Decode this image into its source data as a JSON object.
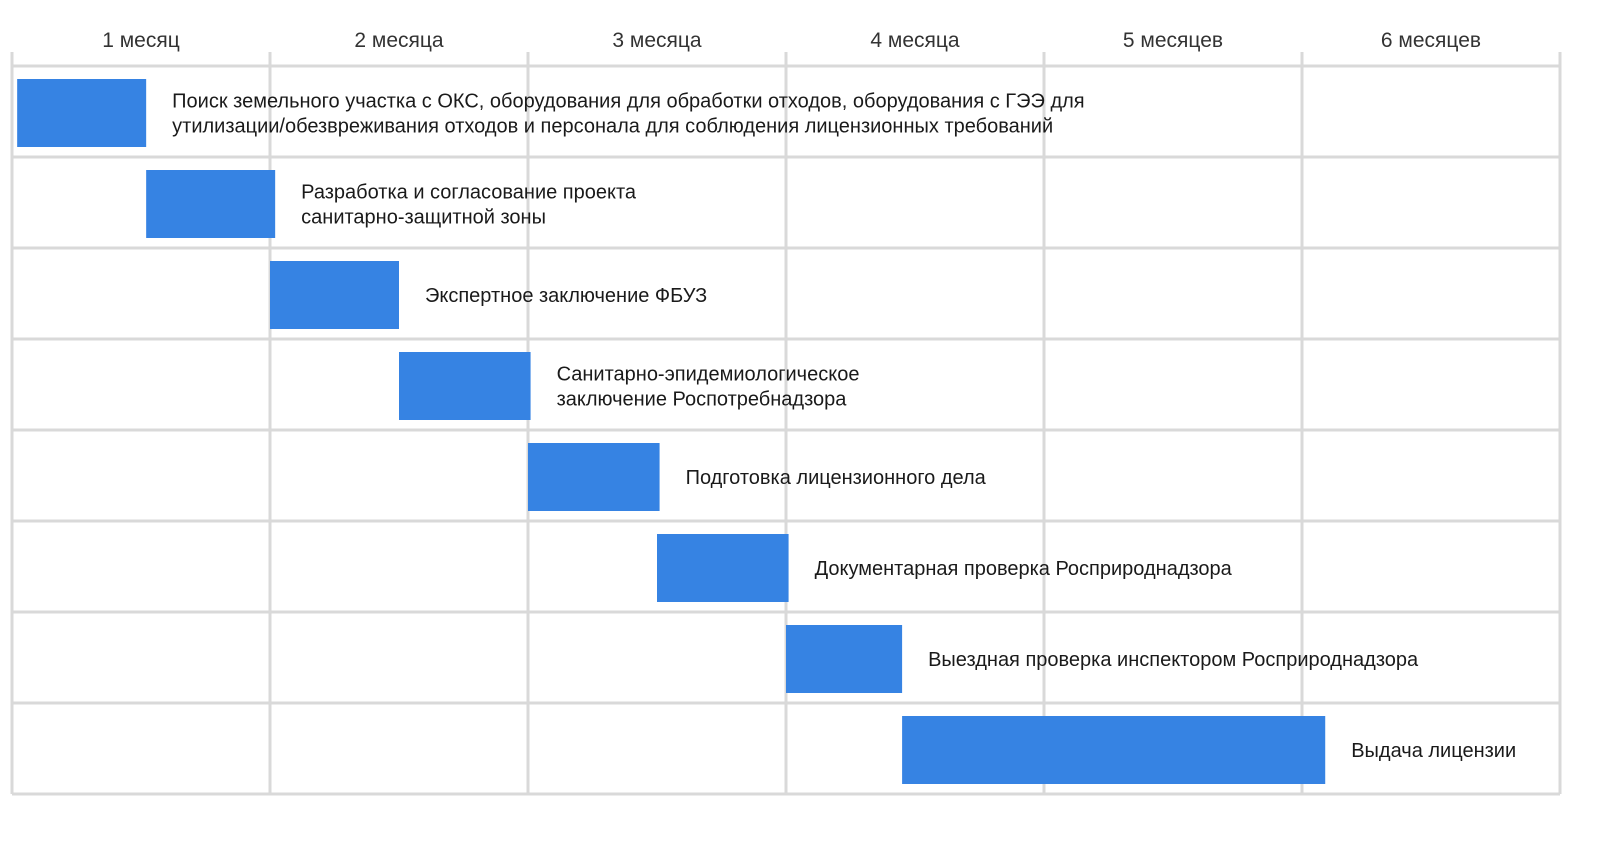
{
  "chart_data": {
    "type": "gantt",
    "x_unit": "month",
    "months": [
      "1 месяц",
      "2 месяца",
      "3 месяца",
      "4 месяца",
      "5 месяцев",
      "6 месяцев"
    ],
    "xlim": [
      0,
      6
    ],
    "grid": true,
    "tasks": [
      {
        "label": [
          "Поиск земельного участка с ОКС, оборудования для обработки отходов, оборудования с ГЭЭ для",
          "утилизации/обезвреживания отходов и персонала для соблюдения лицензионных требований"
        ],
        "start": 0.02,
        "end": 0.52
      },
      {
        "label": [
          "Разработка и согласование проекта",
          "санитарно-защитной зоны"
        ],
        "start": 0.52,
        "end": 1.02
      },
      {
        "label": [
          "Экспертное заключение ФБУЗ"
        ],
        "start": 1.0,
        "end": 1.5
      },
      {
        "label": [
          "Санитарно-эпидемиологическое",
          "заключение Роспотребнадзора"
        ],
        "start": 1.5,
        "end": 2.01
      },
      {
        "label": [
          "Подготовка лицензионного дела"
        ],
        "start": 2.0,
        "end": 2.51
      },
      {
        "label": [
          "Документарная проверка Росприроднадзора"
        ],
        "start": 2.5,
        "end": 3.01
      },
      {
        "label": [
          "Выездная проверка инспектором Росприроднадзора"
        ],
        "start": 3.0,
        "end": 3.45
      },
      {
        "label": [
          "Выдача лицензии"
        ],
        "start": 3.45,
        "end": 5.09
      }
    ],
    "bar_color": "#3683e3",
    "grid_color": "#d9d9d9"
  }
}
